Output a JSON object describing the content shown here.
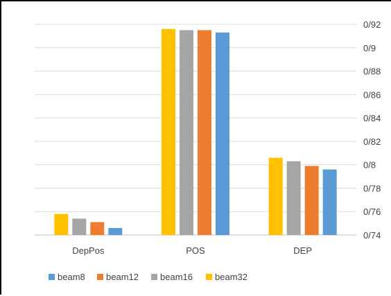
{
  "chart_data": {
    "type": "bar",
    "categories": [
      "DepPos",
      "POS",
      "DEP"
    ],
    "series": [
      {
        "name": "beam32",
        "color": "#FFC000",
        "values": [
          0.758,
          0.916,
          0.806
        ]
      },
      {
        "name": "beam16",
        "color": "#A5A5A5",
        "values": [
          0.754,
          0.915,
          0.803
        ]
      },
      {
        "name": "beam12",
        "color": "#ED7D31",
        "values": [
          0.751,
          0.915,
          0.799
        ]
      },
      {
        "name": "beam8",
        "color": "#5B9BD5",
        "values": [
          0.746,
          0.913,
          0.796
        ]
      }
    ],
    "legend_order": [
      "beam8",
      "beam12",
      "beam16",
      "beam32"
    ],
    "ylim": [
      0.74,
      0.92
    ],
    "yticks": [
      0.74,
      0.76,
      0.78,
      0.8,
      0.82,
      0.84,
      0.86,
      0.88,
      0.9,
      0.92
    ],
    "ytick_labels": [
      "0/74",
      "0/76",
      "0/78",
      "0/8",
      "0/82",
      "0/84",
      "0/86",
      "0/88",
      "0/9",
      "0/92"
    ],
    "y_axis_side": "right",
    "grid": true,
    "legend_position": "bottom-left",
    "title": "",
    "xlabel": "",
    "ylabel": ""
  }
}
